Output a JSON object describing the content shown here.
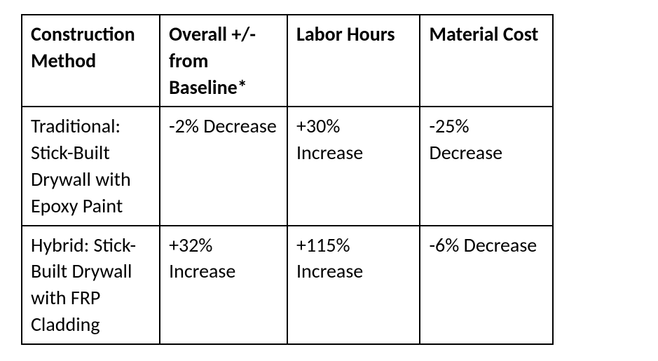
{
  "table": {
    "type": "table",
    "border_color": "#000000",
    "border_width": 2,
    "background_color": "#ffffff",
    "text_color": "#000000",
    "header_fontweight": "bold",
    "cell_fontweight": "normal",
    "fontsize": 28,
    "lineheight": 1.35,
    "font_family": "Calibri, 'Segoe UI', Arial, sans-serif",
    "column_widths_pct": [
      26,
      24,
      25,
      25
    ],
    "text_align": "left",
    "vertical_align": "top",
    "columns": [
      "Construction Method",
      "Overall +/- from Baseline*",
      "Labor Hours",
      "Material Cost"
    ],
    "rows": [
      [
        "Traditional: Stick-Built Drywall with Epoxy Paint",
        "-2% Decrease",
        "+30% Increase",
        "-25% Decrease"
      ],
      [
        "Hybrid: Stick-Built Drywall with FRP Cladding",
        "+32% Increase",
        "+115% Increase",
        "-6% Decrease"
      ]
    ]
  }
}
